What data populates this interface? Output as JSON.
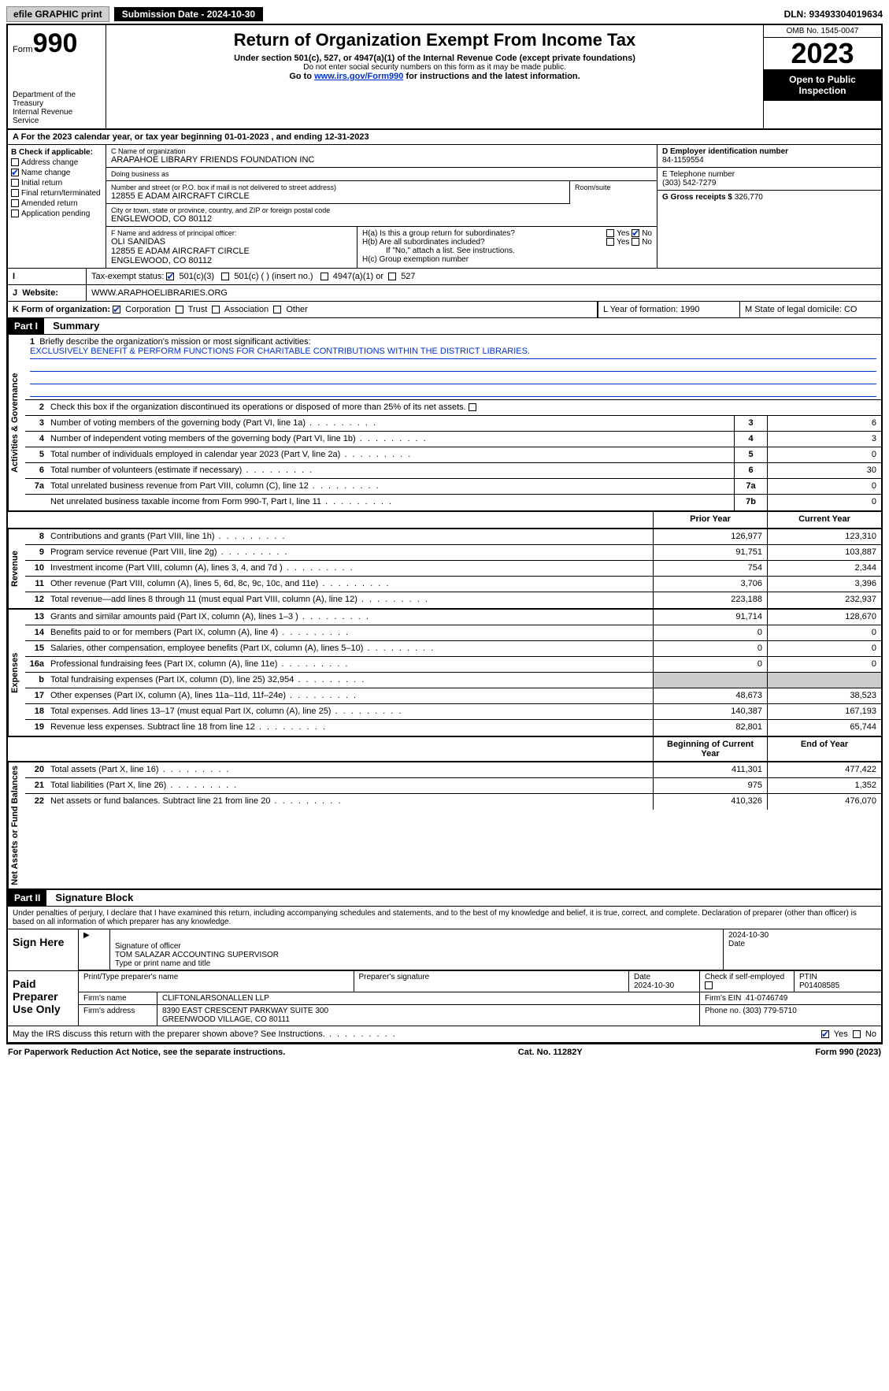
{
  "topbar": {
    "efile": "efile GRAPHIC print",
    "submission": "Submission Date - 2024-10-30",
    "dln": "DLN: 93493304019634"
  },
  "header": {
    "form_label": "Form",
    "form_num": "990",
    "dept": "Department of the Treasury\nInternal Revenue Service",
    "title": "Return of Organization Exempt From Income Tax",
    "sub1": "Under section 501(c), 527, or 4947(a)(1) of the Internal Revenue Code (except private foundations)",
    "sub2": "Do not enter social security numbers on this form as it may be made public.",
    "sub3a": "Go to ",
    "sub3_link": "www.irs.gov/Form990",
    "sub3b": " for instructions and the latest information.",
    "omb": "OMB No. 1545-0047",
    "year": "2023",
    "open": "Open to Public Inspection"
  },
  "rowA": "For the 2023 calendar year, or tax year beginning 01-01-2023   , and ending 12-31-2023",
  "colB": {
    "hdr": "B Check if applicable:",
    "items": [
      "Address change",
      "Name change",
      "Initial return",
      "Final return/terminated",
      "Amended return",
      "Application pending"
    ],
    "checked_idx": 1
  },
  "colC": {
    "name_lbl": "C Name of organization",
    "name": "ARAPAHOE LIBRARY FRIENDS FOUNDATION INC",
    "dba_lbl": "Doing business as",
    "dba": "",
    "addr_lbl": "Number and street (or P.O. box if mail is not delivered to street address)",
    "addr": "12855 E ADAM AIRCRAFT CIRCLE",
    "room_lbl": "Room/suite",
    "city_lbl": "City or town, state or province, country, and ZIP or foreign postal code",
    "city": "ENGLEWOOD, CO  80112",
    "officer_lbl": "F  Name and address of principal officer:",
    "officer": "OLI SANIDAS\n12855 E ADAM AIRCRAFT CIRCLE\nENGLEWOOD, CO  80112"
  },
  "colD": {
    "ein_lbl": "D Employer identification number",
    "ein": "84-1159554",
    "tel_lbl": "E Telephone number",
    "tel": "(303) 542-7279",
    "gross_lbl": "G Gross receipts $",
    "gross": "326,770"
  },
  "h": {
    "ha": "H(a)  Is this a group return for subordinates?",
    "hb": "H(b)  Are all subordinates included?",
    "hb_note": "If \"No,\" attach a list. See instructions.",
    "hc": "H(c)  Group exemption number"
  },
  "rowI": {
    "lbl": "Tax-exempt status:",
    "opt1": "501(c)(3)",
    "opt2": "501(c) (  ) (insert no.)",
    "opt3": "4947(a)(1) or",
    "opt4": "527"
  },
  "rowJ": {
    "lbl": "Website:",
    "val": "WWW.ARAPHOELIBRARIES.ORG"
  },
  "rowK": {
    "lbl": "K Form of organization:",
    "opts": [
      "Corporation",
      "Trust",
      "Association",
      "Other"
    ],
    "L": "L Year of formation: 1990",
    "M": "M State of legal domicile: CO"
  },
  "part1": {
    "hdr": "Part I",
    "title": "Summary",
    "line1_lbl": "Briefly describe the organization's mission or most significant activities:",
    "mission": "EXCLUSIVELY BENEFIT & PERFORM FUNCTIONS FOR CHARITABLE CONTRIBUTIONS WITHIN THE DISTRICT LIBRARIES.",
    "line2": "Check this box       if the organization discontinued its operations or disposed of more than 25% of its net assets."
  },
  "gov_rows": [
    {
      "n": "3",
      "d": "Number of voting members of the governing body (Part VI, line 1a)",
      "box": "3",
      "v": "6"
    },
    {
      "n": "4",
      "d": "Number of independent voting members of the governing body (Part VI, line 1b)",
      "box": "4",
      "v": "3"
    },
    {
      "n": "5",
      "d": "Total number of individuals employed in calendar year 2023 (Part V, line 2a)",
      "box": "5",
      "v": "0"
    },
    {
      "n": "6",
      "d": "Total number of volunteers (estimate if necessary)",
      "box": "6",
      "v": "30"
    },
    {
      "n": "7a",
      "d": "Total unrelated business revenue from Part VIII, column (C), line 12",
      "box": "7a",
      "v": "0"
    },
    {
      "n": "",
      "d": "Net unrelated business taxable income from Form 990-T, Part I, line 11",
      "box": "7b",
      "v": "0"
    }
  ],
  "col_hdrs": {
    "prior": "Prior Year",
    "curr": "Current Year",
    "begin": "Beginning of Current Year",
    "end": "End of Year"
  },
  "rev_rows": [
    {
      "n": "8",
      "d": "Contributions and grants (Part VIII, line 1h)",
      "p": "126,977",
      "c": "123,310"
    },
    {
      "n": "9",
      "d": "Program service revenue (Part VIII, line 2g)",
      "p": "91,751",
      "c": "103,887"
    },
    {
      "n": "10",
      "d": "Investment income (Part VIII, column (A), lines 3, 4, and 7d )",
      "p": "754",
      "c": "2,344"
    },
    {
      "n": "11",
      "d": "Other revenue (Part VIII, column (A), lines 5, 6d, 8c, 9c, 10c, and 11e)",
      "p": "3,706",
      "c": "3,396"
    },
    {
      "n": "12",
      "d": "Total revenue—add lines 8 through 11 (must equal Part VIII, column (A), line 12)",
      "p": "223,188",
      "c": "232,937"
    }
  ],
  "exp_rows": [
    {
      "n": "13",
      "d": "Grants and similar amounts paid (Part IX, column (A), lines 1–3 )",
      "p": "91,714",
      "c": "128,670"
    },
    {
      "n": "14",
      "d": "Benefits paid to or for members (Part IX, column (A), line 4)",
      "p": "0",
      "c": "0"
    },
    {
      "n": "15",
      "d": "Salaries, other compensation, employee benefits (Part IX, column (A), lines 5–10)",
      "p": "0",
      "c": "0"
    },
    {
      "n": "16a",
      "d": "Professional fundraising fees (Part IX, column (A), line 11e)",
      "p": "0",
      "c": "0"
    },
    {
      "n": "b",
      "d": "Total fundraising expenses (Part IX, column (D), line 25) 32,954",
      "p": "",
      "c": "",
      "shade": true
    },
    {
      "n": "17",
      "d": "Other expenses (Part IX, column (A), lines 11a–11d, 11f–24e)",
      "p": "48,673",
      "c": "38,523"
    },
    {
      "n": "18",
      "d": "Total expenses. Add lines 13–17 (must equal Part IX, column (A), line 25)",
      "p": "140,387",
      "c": "167,193"
    },
    {
      "n": "19",
      "d": "Revenue less expenses. Subtract line 18 from line 12",
      "p": "82,801",
      "c": "65,744"
    }
  ],
  "net_rows": [
    {
      "n": "20",
      "d": "Total assets (Part X, line 16)",
      "p": "411,301",
      "c": "477,422"
    },
    {
      "n": "21",
      "d": "Total liabilities (Part X, line 26)",
      "p": "975",
      "c": "1,352"
    },
    {
      "n": "22",
      "d": "Net assets or fund balances. Subtract line 21 from line 20",
      "p": "410,326",
      "c": "476,070"
    }
  ],
  "vtabs": {
    "gov": "Activities & Governance",
    "rev": "Revenue",
    "exp": "Expenses",
    "net": "Net Assets or Fund Balances"
  },
  "part2": {
    "hdr": "Part II",
    "title": "Signature Block",
    "decl": "Under penalties of perjury, I declare that I have examined this return, including accompanying schedules and statements, and to the best of my knowledge and belief, it is true, correct, and complete. Declaration of preparer (other than officer) is based on all information of which preparer has any knowledge."
  },
  "sign": {
    "here": "Sign Here",
    "sig_lbl": "Signature of officer",
    "date": "2024-10-30",
    "name": "TOM SALAZAR  ACCOUNTING SUPERVISOR",
    "name_lbl": "Type or print name and title"
  },
  "paid": {
    "lbl": "Paid Preparer Use Only",
    "h1": "Print/Type preparer's name",
    "h2": "Preparer's signature",
    "h3": "Date",
    "date": "2024-10-30",
    "h4": "Check        if self-employed",
    "h5": "PTIN",
    "ptin": "P01408585",
    "firm_lbl": "Firm's name",
    "firm": "CLIFTONLARSONALLEN LLP",
    "ein_lbl": "Firm's EIN",
    "ein": "41-0746749",
    "addr_lbl": "Firm's address",
    "addr": "8390 EAST CRESCENT PARKWAY SUITE 300\nGREENWOOD VILLAGE, CO  80111",
    "phone_lbl": "Phone no.",
    "phone": "(303) 779-5710"
  },
  "discuss": "May the IRS discuss this return with the preparer shown above? See Instructions.",
  "footer": {
    "left": "For Paperwork Reduction Act Notice, see the separate instructions.",
    "mid": "Cat. No. 11282Y",
    "right": "Form 990 (2023)"
  }
}
